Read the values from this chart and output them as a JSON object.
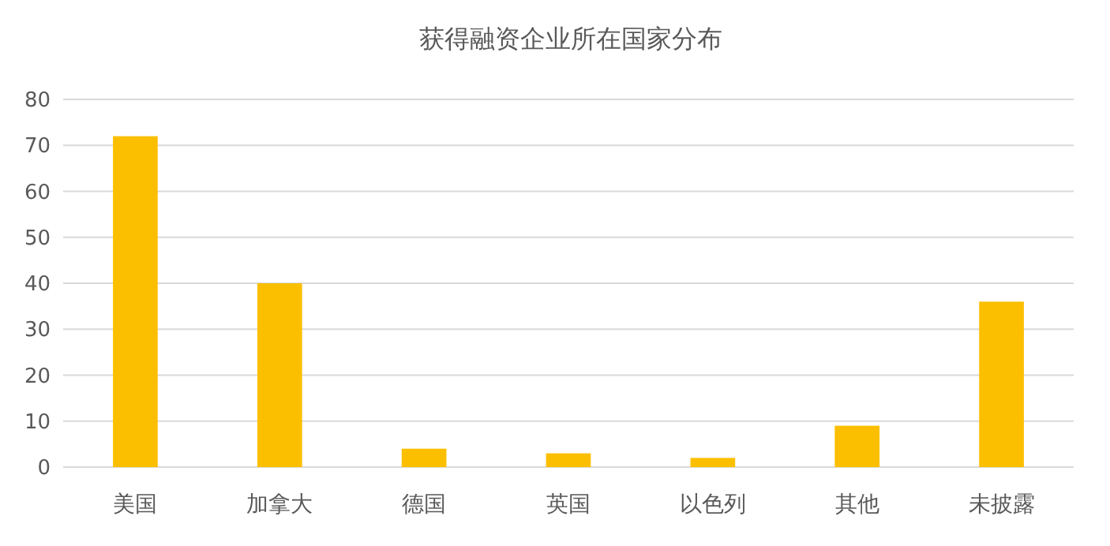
{
  "chart_data": {
    "type": "bar",
    "title": "获得融资企业所在国家分布",
    "categories": [
      "美国",
      "加拿大",
      "德国",
      "英国",
      "以色列",
      "其他",
      "未披露"
    ],
    "values": [
      72,
      40,
      4,
      3,
      2,
      9,
      36
    ],
    "color": "#fcbf00",
    "ylim": [
      0,
      80
    ],
    "yticks": [
      0,
      10,
      20,
      30,
      40,
      50,
      60,
      70,
      80
    ],
    "grid": "y"
  }
}
